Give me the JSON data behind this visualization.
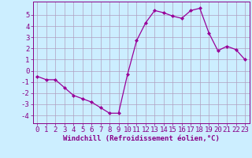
{
  "x": [
    0,
    1,
    2,
    3,
    4,
    5,
    6,
    7,
    8,
    9,
    10,
    11,
    12,
    13,
    14,
    15,
    16,
    17,
    18,
    19,
    20,
    21,
    22,
    23
  ],
  "y": [
    -0.5,
    -0.8,
    -0.8,
    -1.5,
    -2.2,
    -2.5,
    -2.8,
    -3.3,
    -3.8,
    -3.8,
    -0.3,
    2.7,
    4.3,
    5.4,
    5.2,
    4.9,
    4.7,
    5.4,
    5.6,
    3.4,
    1.8,
    2.2,
    1.9,
    1.0
  ],
  "line_color": "#990099",
  "marker": "D",
  "marker_size": 2.0,
  "bg_color": "#cceeff",
  "grid_color": "#b0a0c0",
  "xlabel": "Windchill (Refroidissement éolien,°C)",
  "xlabel_fontsize": 6.5,
  "ylabel_ticks": [
    -4,
    -3,
    -2,
    -1,
    0,
    1,
    2,
    3,
    4,
    5
  ],
  "xtick_labels": [
    "0",
    "1",
    "2",
    "3",
    "4",
    "5",
    "6",
    "7",
    "8",
    "9",
    "10",
    "11",
    "12",
    "13",
    "14",
    "15",
    "16",
    "17",
    "18",
    "19",
    "20",
    "21",
    "22",
    "23"
  ],
  "xlim": [
    -0.5,
    23.5
  ],
  "ylim": [
    -4.7,
    6.2
  ],
  "tick_fontsize": 6.5,
  "label_color": "#880088",
  "spine_color": "#880088"
}
